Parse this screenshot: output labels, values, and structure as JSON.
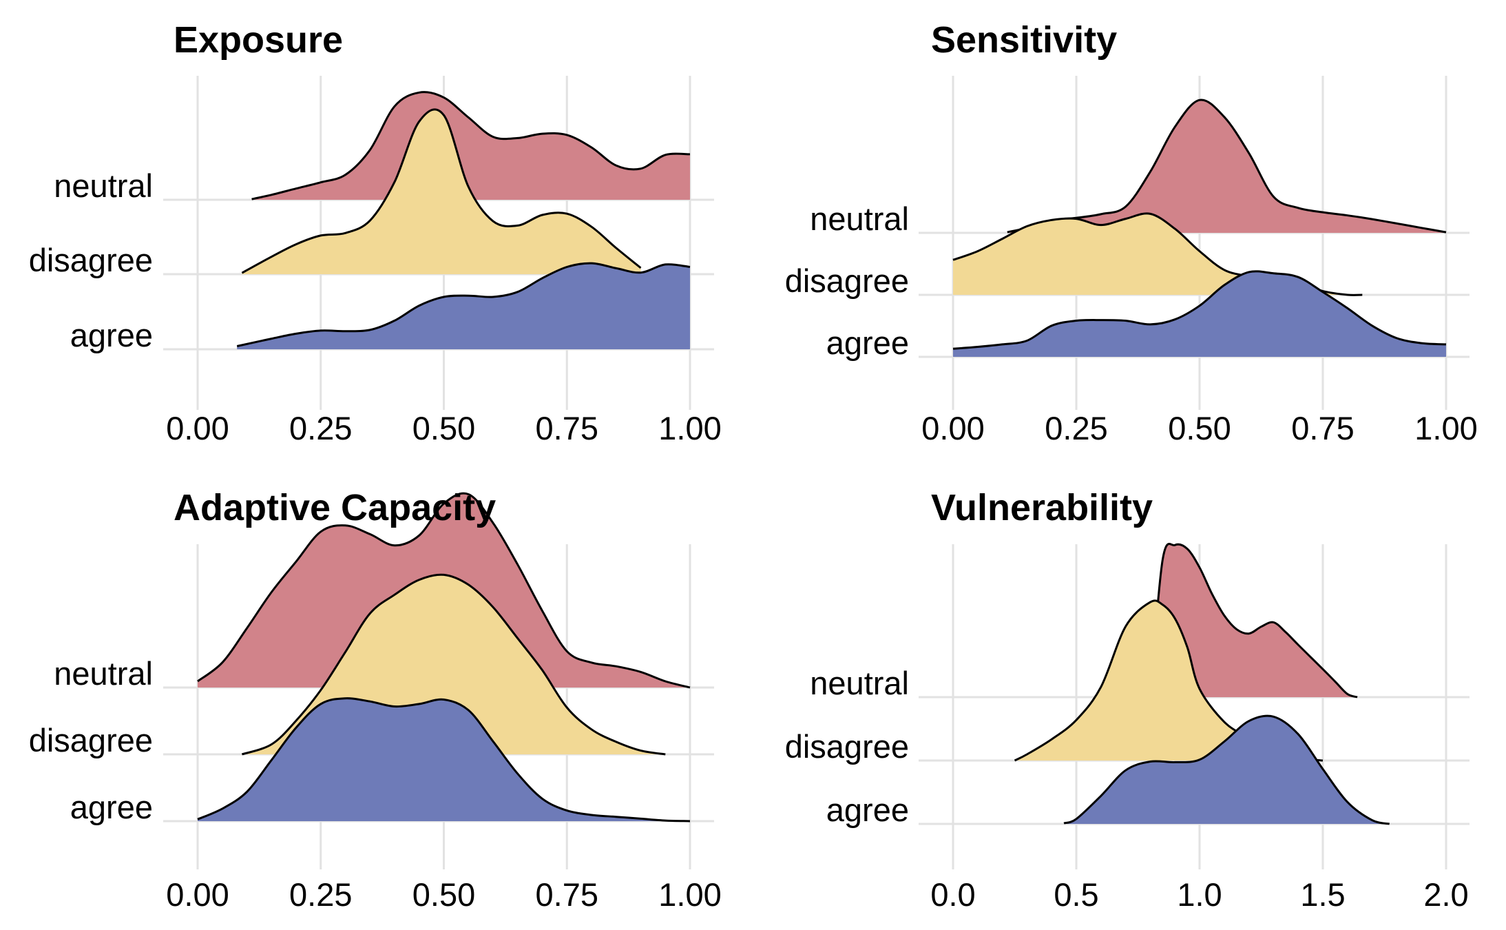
{
  "chart_data": [
    {
      "type": "ridgeline",
      "title": "Exposure",
      "xlabel": "",
      "ylabel": "",
      "xlim": [
        0,
        1
      ],
      "xticks": [
        0,
        0.25,
        0.5,
        0.75,
        1
      ],
      "xtick_labels": [
        "0.00",
        "0.25",
        "0.50",
        "0.75",
        "1.00"
      ],
      "categories": [
        "agree",
        "disagree",
        "neutral"
      ],
      "grid": true,
      "series": [
        {
          "category": "agree",
          "color": "#6e7bb8",
          "x": [
            0.08,
            0.15,
            0.2,
            0.25,
            0.3,
            0.35,
            0.4,
            0.45,
            0.5,
            0.55,
            0.6,
            0.65,
            0.7,
            0.75,
            0.8,
            0.85,
            0.9,
            0.95,
            1.0
          ],
          "y": [
            0.05,
            0.17,
            0.25,
            0.3,
            0.29,
            0.31,
            0.46,
            0.7,
            0.84,
            0.86,
            0.84,
            0.92,
            1.14,
            1.32,
            1.38,
            1.3,
            1.23,
            1.36,
            1.32
          ]
        },
        {
          "category": "disagree",
          "color": "#f2d995",
          "x": [
            0.09,
            0.15,
            0.2,
            0.25,
            0.3,
            0.35,
            0.4,
            0.45,
            0.5,
            0.55,
            0.6,
            0.65,
            0.7,
            0.75,
            0.8,
            0.85,
            0.9
          ],
          "y": [
            0.02,
            0.28,
            0.48,
            0.62,
            0.66,
            0.86,
            1.48,
            2.45,
            2.55,
            1.4,
            0.85,
            0.78,
            0.95,
            0.97,
            0.76,
            0.42,
            0.1
          ]
        },
        {
          "category": "neutral",
          "color": "#d1838a",
          "x": [
            0.11,
            0.15,
            0.2,
            0.25,
            0.3,
            0.35,
            0.4,
            0.45,
            0.5,
            0.55,
            0.6,
            0.65,
            0.7,
            0.75,
            0.8,
            0.85,
            0.9,
            0.95,
            1.0
          ],
          "y": [
            0.01,
            0.08,
            0.18,
            0.28,
            0.4,
            0.8,
            1.5,
            1.72,
            1.64,
            1.32,
            1.01,
            0.99,
            1.06,
            1.04,
            0.84,
            0.55,
            0.5,
            0.72,
            0.73
          ]
        }
      ]
    },
    {
      "type": "ridgeline",
      "title": "Sensitivity",
      "xlabel": "",
      "ylabel": "",
      "xlim": [
        0,
        1
      ],
      "xticks": [
        0,
        0.25,
        0.5,
        0.75,
        1
      ],
      "xtick_labels": [
        "0.00",
        "0.25",
        "0.50",
        "0.75",
        "1.00"
      ],
      "categories": [
        "agree",
        "disagree",
        "neutral"
      ],
      "grid": true,
      "series": [
        {
          "category": "agree",
          "color": "#6e7bb8",
          "x": [
            0.0,
            0.05,
            0.1,
            0.15,
            0.2,
            0.25,
            0.3,
            0.35,
            0.4,
            0.45,
            0.5,
            0.55,
            0.6,
            0.65,
            0.7,
            0.75,
            0.8,
            0.85,
            0.9,
            0.95,
            1.0
          ],
          "y": [
            0.13,
            0.16,
            0.2,
            0.26,
            0.5,
            0.58,
            0.59,
            0.58,
            0.52,
            0.6,
            0.82,
            1.15,
            1.36,
            1.34,
            1.28,
            1.04,
            0.78,
            0.5,
            0.3,
            0.22,
            0.2
          ]
        },
        {
          "category": "disagree",
          "color": "#f2d995",
          "x": [
            0.0,
            0.05,
            0.1,
            0.15,
            0.2,
            0.25,
            0.3,
            0.35,
            0.4,
            0.45,
            0.5,
            0.55,
            0.6,
            0.65,
            0.7,
            0.75,
            0.8,
            0.83
          ],
          "y": [
            0.56,
            0.7,
            0.9,
            1.1,
            1.2,
            1.22,
            1.12,
            1.22,
            1.3,
            1.06,
            0.7,
            0.4,
            0.3,
            0.26,
            0.2,
            0.06,
            0.0,
            0.0
          ]
        },
        {
          "category": "neutral",
          "color": "#d1838a",
          "x": [
            0.11,
            0.15,
            0.2,
            0.25,
            0.3,
            0.35,
            0.4,
            0.45,
            0.5,
            0.55,
            0.6,
            0.65,
            0.7,
            0.75,
            0.8,
            0.85,
            0.9,
            0.95,
            1.0
          ],
          "y": [
            0.01,
            0.08,
            0.2,
            0.24,
            0.3,
            0.42,
            0.98,
            1.7,
            2.13,
            1.86,
            1.28,
            0.58,
            0.4,
            0.33,
            0.28,
            0.22,
            0.15,
            0.08,
            0.01
          ]
        }
      ]
    },
    {
      "type": "ridgeline",
      "title": "Adaptive Capacity",
      "xlabel": "",
      "ylabel": "",
      "xlim": [
        0,
        1
      ],
      "xticks": [
        0,
        0.25,
        0.5,
        0.75,
        1
      ],
      "xtick_labels": [
        "0.00",
        "0.25",
        "0.50",
        "0.75",
        "1.00"
      ],
      "categories": [
        "agree",
        "disagree",
        "neutral"
      ],
      "grid": true,
      "series": [
        {
          "category": "agree",
          "color": "#6e7bb8",
          "x": [
            0.0,
            0.05,
            0.1,
            0.15,
            0.2,
            0.25,
            0.3,
            0.35,
            0.4,
            0.45,
            0.5,
            0.55,
            0.6,
            0.65,
            0.7,
            0.75,
            0.8,
            0.85,
            0.9,
            0.95,
            1.0
          ],
          "y": [
            0.03,
            0.2,
            0.47,
            0.98,
            1.5,
            1.88,
            1.97,
            1.92,
            1.84,
            1.88,
            1.95,
            1.78,
            1.28,
            0.76,
            0.36,
            0.17,
            0.1,
            0.07,
            0.04,
            0.01,
            0.0
          ]
        },
        {
          "category": "disagree",
          "color": "#f2d995",
          "x": [
            0.09,
            0.15,
            0.2,
            0.25,
            0.3,
            0.35,
            0.4,
            0.45,
            0.5,
            0.55,
            0.6,
            0.65,
            0.7,
            0.75,
            0.8,
            0.85,
            0.9,
            0.95
          ],
          "y": [
            0.0,
            0.16,
            0.54,
            1.03,
            1.64,
            2.26,
            2.56,
            2.8,
            2.88,
            2.72,
            2.36,
            1.86,
            1.35,
            0.75,
            0.4,
            0.2,
            0.06,
            0.0
          ]
        },
        {
          "category": "neutral",
          "color": "#d1838a",
          "x": [
            0.0,
            0.05,
            0.1,
            0.15,
            0.2,
            0.25,
            0.3,
            0.35,
            0.4,
            0.45,
            0.5,
            0.55,
            0.6,
            0.65,
            0.7,
            0.75,
            0.8,
            0.85,
            0.9,
            0.95,
            1.0
          ],
          "y": [
            0.1,
            0.4,
            0.95,
            1.53,
            2.02,
            2.5,
            2.6,
            2.46,
            2.28,
            2.44,
            2.95,
            3.1,
            2.64,
            1.97,
            1.23,
            0.58,
            0.4,
            0.34,
            0.25,
            0.1,
            0.0
          ]
        }
      ]
    },
    {
      "type": "ridgeline",
      "title": "Vulnerability",
      "xlabel": "",
      "ylabel": "",
      "xlim": [
        0,
        2
      ],
      "xticks": [
        0,
        0.5,
        1,
        1.5,
        2
      ],
      "xtick_labels": [
        "0.0",
        "0.5",
        "1.0",
        "1.5",
        "2.0"
      ],
      "categories": [
        "agree",
        "disagree",
        "neutral"
      ],
      "grid": true,
      "series": [
        {
          "category": "agree",
          "color": "#6e7bb8",
          "x": [
            0.45,
            0.5,
            0.6,
            0.7,
            0.8,
            0.9,
            1.0,
            1.1,
            1.2,
            1.3,
            1.4,
            1.5,
            1.6,
            1.7,
            1.77
          ],
          "y": [
            0.01,
            0.08,
            0.45,
            0.86,
            1.0,
            0.99,
            1.03,
            1.32,
            1.65,
            1.72,
            1.44,
            0.88,
            0.35,
            0.06,
            0.0
          ]
        },
        {
          "category": "disagree",
          "color": "#f2d995",
          "x": [
            0.25,
            0.3,
            0.4,
            0.5,
            0.6,
            0.7,
            0.8,
            0.85,
            0.9,
            0.95,
            1.0,
            1.1,
            1.2,
            1.3,
            1.4,
            1.5
          ],
          "y": [
            0.0,
            0.1,
            0.34,
            0.65,
            1.18,
            2.15,
            2.54,
            2.5,
            2.28,
            1.82,
            1.15,
            0.62,
            0.36,
            0.15,
            0.04,
            0.0
          ]
        },
        {
          "category": "neutral",
          "color": "#d1838a",
          "x": [
            0.8,
            0.85,
            0.9,
            0.95,
            1.0,
            1.05,
            1.1,
            1.15,
            1.2,
            1.25,
            1.3,
            1.35,
            1.4,
            1.5,
            1.55,
            1.6,
            1.64
          ],
          "y": [
            0.05,
            2.2,
            2.44,
            2.38,
            2.08,
            1.66,
            1.31,
            1.09,
            1.02,
            1.13,
            1.2,
            1.04,
            0.84,
            0.45,
            0.25,
            0.05,
            0.0
          ]
        }
      ]
    }
  ]
}
